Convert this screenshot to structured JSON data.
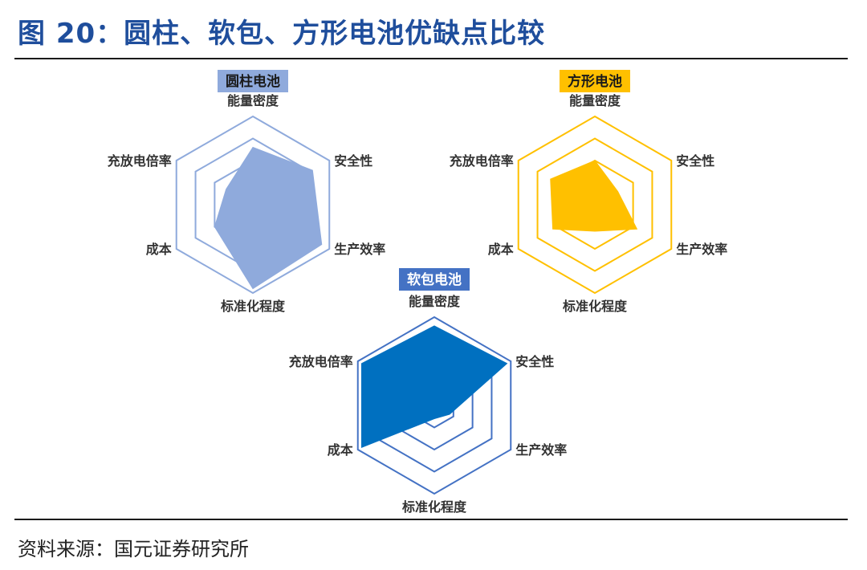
{
  "header": {
    "title": "图 20：圆柱、软包、方形电池优缺点比较"
  },
  "footer": {
    "source": "资料来源：国元证券研究所"
  },
  "chart_data": [
    {
      "type": "radar",
      "title": "圆柱电池",
      "axes": [
        "能量密度",
        "安全性",
        "生产效率",
        "标准化程度",
        "成本",
        "充放电倍率"
      ],
      "levels": 4,
      "values": [
        0.65,
        0.78,
        0.9,
        0.95,
        0.5,
        0.35
      ],
      "colors": {
        "fill": "#8faadc",
        "grid": "#8faadc",
        "title_bg": "#8faadc",
        "title_text": "#1a1a1a"
      }
    },
    {
      "type": "radar",
      "title": "方形电池",
      "axes": [
        "能量密度",
        "安全性",
        "生产效率",
        "标准化程度",
        "成本",
        "充放电倍率"
      ],
      "levels": 4,
      "values": [
        0.5,
        0.3,
        0.55,
        0.3,
        0.55,
        0.58
      ],
      "colors": {
        "fill": "#ffc000",
        "grid": "#ffc000",
        "title_bg": "#ffc000",
        "title_text": "#1a1a1a"
      }
    },
    {
      "type": "radar",
      "title": "软包电池",
      "axes": [
        "能量密度",
        "安全性",
        "生产效率",
        "标准化程度",
        "成本",
        "充放电倍率"
      ],
      "levels": 4,
      "values": [
        0.9,
        0.95,
        0.2,
        0.15,
        0.95,
        0.95
      ],
      "colors": {
        "fill": "#0070c0",
        "grid": "#4472c4",
        "title_bg": "#4472c4",
        "title_text": "#ffffff"
      }
    }
  ]
}
